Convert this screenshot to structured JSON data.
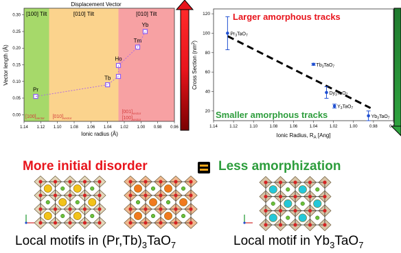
{
  "colors": {
    "red_headline": "#e8141c",
    "green_headline": "#2d9d3c",
    "zone_green": "#a6d96a",
    "zone_orange": "#fbd38d",
    "zone_red": "#f7a1a3",
    "series_purple": "#8b5cf6",
    "series_blue": "#1f4fd1"
  },
  "headline_left": "More initial disorder",
  "headline_right": "Less amorphization",
  "equals_sign": "=",
  "caption_left": {
    "pre": "Local motifs in (Pr,Tb)",
    "sub1": "3",
    "mid": "TaO",
    "sub2": "7"
  },
  "caption_right": {
    "pre": "Local motif in Yb",
    "sub1": "3",
    "mid": "TaO",
    "sub2": "7"
  },
  "chart_data": [
    {
      "type": "line",
      "title": "Displacement Vector",
      "xlabel": "Ionic radius (Å)",
      "ylabel": "Vector length (Å)",
      "xlim": [
        1.14,
        0.96
      ],
      "ylim": [
        -0.02,
        0.32
      ],
      "x_ticks": [
        "1.14",
        "1.12",
        "1.10",
        "1.08",
        "1.06",
        "1.04",
        "1.02",
        "1.00",
        "0.98",
        "0.96"
      ],
      "y_ticks": [
        "0.00",
        "0.05",
        "0.10",
        "0.15",
        "0.20",
        "0.25",
        "0.30"
      ],
      "zones": [
        {
          "label": "[100] Tilt",
          "from": 1.14,
          "to": 1.11,
          "color": "#a6d96a"
        },
        {
          "label": "[010] Tilt",
          "from": 1.11,
          "to": 1.027,
          "color": "#fbd38d"
        },
        {
          "label": "[010] Tilt",
          "from": 1.027,
          "to": 0.96,
          "color": "#f7a1a3"
        }
      ],
      "corner_labels": [
        {
          "text": "[100]",
          "sub": "vector",
          "zone": 0
        },
        {
          "text": "[010]",
          "sub": "vector",
          "zone": 1
        },
        {
          "text": "[001]",
          "sub": "vector",
          "zone": 2,
          "line2": "[100]",
          "sub2": "vector"
        }
      ],
      "series": [
        {
          "points": [
            {
              "x": 1.126,
              "y": 0.055,
              "label": "Pr"
            },
            {
              "x": 1.04,
              "y": 0.09,
              "label": "Tb"
            },
            {
              "x": 1.027,
              "y": 0.115,
              "label": ""
            },
            {
              "x": 1.027,
              "y": 0.148,
              "label": "Ho"
            },
            {
              "x": 1.004,
              "y": 0.203,
              "label": "Tm"
            },
            {
              "x": 0.995,
              "y": 0.25,
              "label": "Yb"
            }
          ]
        }
      ]
    },
    {
      "type": "scatter",
      "title": "",
      "xlabel": "Ionic Radius, R",
      "xlabel_sub": "A",
      "xlabel_unit": " [Ang]",
      "ylabel": "Cross Section (nm",
      "ylabel_sup": "2",
      "ylabel_end": ")",
      "xlim": [
        1.14,
        0.96
      ],
      "ylim": [
        10,
        125
      ],
      "x_ticks": [
        "1.14",
        "1.12",
        "1.10",
        "1.08",
        "1.06",
        "1.04",
        "1.02",
        "1.00",
        "0.98",
        "0.96"
      ],
      "y_ticks": [
        "20",
        "40",
        "60",
        "80",
        "100",
        "120"
      ],
      "annotations": {
        "top": "Larger amorphous tracks",
        "bottom": "Smaller amorphous tracks"
      },
      "points": [
        {
          "x": 1.126,
          "y": 100,
          "err": 17,
          "label": "Pr",
          "formula": [
            "Pr",
            "3",
            "TaO",
            "7"
          ]
        },
        {
          "x": 1.04,
          "y": 68,
          "err": 1,
          "label": "Tb",
          "formula": [
            "Tb",
            "3",
            "TaO",
            "7"
          ]
        },
        {
          "x": 1.027,
          "y": 39,
          "err": 6,
          "label": "Dy",
          "formula": [
            "Dy",
            "3",
            "TaO",
            "7"
          ]
        },
        {
          "x": 1.019,
          "y": 25,
          "err": 2,
          "label": "Y",
          "formula": [
            "Y",
            "3",
            "TaO",
            "7"
          ]
        },
        {
          "x": 0.985,
          "y": 15,
          "err": 5,
          "label": "Yb",
          "formula": [
            "Yb",
            "3",
            "TaO",
            "7"
          ]
        }
      ]
    }
  ]
}
